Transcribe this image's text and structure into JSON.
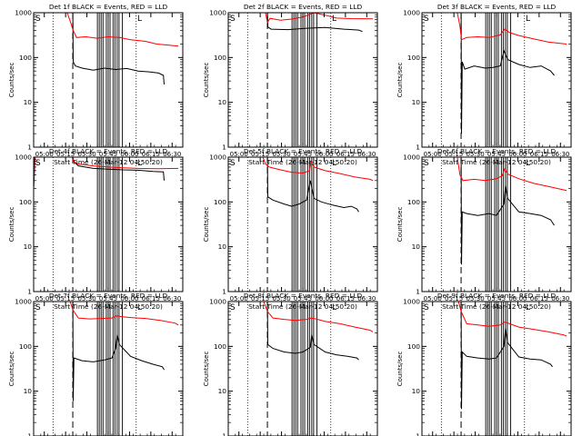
{
  "figure": {
    "type": "line",
    "xlabel_template": "Start Time ({date})",
    "ylabel": "Counts/sec",
    "x_ticks": [
      "05:00",
      "05:15",
      "05:30",
      "05:45",
      "06:00",
      "06:15",
      "06:30"
    ],
    "y_ticks": [
      "1",
      "10",
      "100",
      "1000"
    ],
    "ylim": [
      1,
      1000
    ],
    "x_range_minutes": [
      0,
      40
    ],
    "corner_marks": [
      "S",
      "L"
    ],
    "colors": {
      "events": "#000000",
      "lld": "#ff0000",
      "axes": "#000000"
    }
  },
  "chart_data": [
    {
      "title": "Det 1f BLACK = Events, RED = LLD",
      "xlabel": "Start Time (26-Mar-12 04:50:20)",
      "type": "line",
      "series": [
        {
          "name": "Events",
          "color": "#000000",
          "points": [
            [
              0,
              1000
            ],
            [
              10.5,
              1000
            ],
            [
              10.6,
              80
            ],
            [
              11.2,
              65
            ],
            [
              13,
              58
            ],
            [
              16,
              52
            ],
            [
              19,
              58
            ],
            [
              22,
              54
            ],
            [
              25,
              57
            ],
            [
              28,
              50
            ],
            [
              31,
              48
            ],
            [
              33.5,
              45
            ],
            [
              34.8,
              40
            ],
            [
              35,
              25
            ]
          ]
        },
        {
          "name": "LLD",
          "color": "#ff0000",
          "points": [
            [
              0,
              1000
            ],
            [
              9,
              1000
            ],
            [
              9.8,
              650
            ],
            [
              10.6,
              400
            ],
            [
              11.5,
              280
            ],
            [
              14,
              290
            ],
            [
              17,
              270
            ],
            [
              20,
              290
            ],
            [
              23,
              280
            ],
            [
              26,
              250
            ],
            [
              30,
              230
            ],
            [
              33,
              200
            ],
            [
              36,
              190
            ],
            [
              38.8,
              180
            ]
          ]
        }
      ]
    },
    {
      "title": "Det 2f BLACK = Events, RED = LLD",
      "xlabel": "Start Time (26-Mar-12 04:50:20)",
      "type": "line",
      "series": [
        {
          "name": "Events",
          "color": "#000000",
          "points": [
            [
              0,
              1000
            ],
            [
              10.5,
              1000
            ],
            [
              10.6,
              480
            ],
            [
              11.5,
              430
            ],
            [
              16,
              420
            ],
            [
              21,
              450
            ],
            [
              26,
              470
            ],
            [
              31,
              430
            ],
            [
              35,
              410
            ],
            [
              36,
              380
            ]
          ]
        },
        {
          "name": "LLD",
          "color": "#ff0000",
          "points": [
            [
              0,
              1000
            ],
            [
              10,
              1000
            ],
            [
              10.5,
              600
            ],
            [
              11.2,
              750
            ],
            [
              14,
              680
            ],
            [
              17,
              720
            ],
            [
              20,
              800
            ],
            [
              23,
              1000
            ],
            [
              26,
              880
            ],
            [
              29,
              760
            ],
            [
              33,
              740
            ],
            [
              38.8,
              730
            ]
          ]
        }
      ]
    },
    {
      "title": "Det 3f BLACK = Events, RED = LLD",
      "xlabel": "Start Time (26-Mar-12 04:50:20)",
      "type": "line",
      "series": [
        {
          "name": "Events",
          "color": "#000000",
          "points": [
            [
              0,
              1000
            ],
            [
              10.5,
              1000
            ],
            [
              10.6,
              2
            ],
            [
              10.8,
              80
            ],
            [
              11.5,
              55
            ],
            [
              14,
              65
            ],
            [
              17,
              58
            ],
            [
              19,
              60
            ],
            [
              21,
              65
            ],
            [
              22,
              140
            ],
            [
              23,
              90
            ],
            [
              26,
              70
            ],
            [
              29,
              60
            ],
            [
              32,
              65
            ],
            [
              34.5,
              50
            ],
            [
              35.5,
              40
            ]
          ]
        },
        {
          "name": "LLD",
          "color": "#ff0000",
          "points": [
            [
              0,
              1000
            ],
            [
              9.5,
              1000
            ],
            [
              10.2,
              500
            ],
            [
              10.6,
              250
            ],
            [
              12,
              280
            ],
            [
              15,
              290
            ],
            [
              18,
              280
            ],
            [
              21,
              320
            ],
            [
              22.2,
              430
            ],
            [
              23.5,
              360
            ],
            [
              26,
              310
            ],
            [
              30,
              260
            ],
            [
              34,
              220
            ],
            [
              38.8,
              200
            ]
          ]
        }
      ]
    },
    {
      "title": "Det 4f BLACK = Events, RED = LLD",
      "xlabel": "Start Time (26-Mar-12 04:50:20)",
      "type": "line",
      "series": [
        {
          "name": "Events",
          "color": "#000000",
          "points": [
            [
              0,
              200
            ],
            [
              0.4,
              1000
            ],
            [
              10.5,
              1000
            ],
            [
              10.7,
              800
            ],
            [
              12,
              640
            ],
            [
              16,
              560
            ],
            [
              20,
              540
            ],
            [
              24,
              520
            ],
            [
              28,
              510
            ],
            [
              32,
              480
            ],
            [
              34.8,
              470
            ],
            [
              35,
              300
            ]
          ]
        },
        {
          "name": "LLD",
          "color": "#ff0000",
          "points": [
            [
              0,
              200
            ],
            [
              0.3,
              1000
            ],
            [
              10.3,
              1000
            ],
            [
              10.7,
              800
            ],
            [
              12,
              700
            ],
            [
              16,
              640
            ],
            [
              20,
              600
            ],
            [
              24,
              580
            ],
            [
              28,
              560
            ],
            [
              33,
              550
            ],
            [
              38.8,
              560
            ]
          ]
        }
      ]
    },
    {
      "title": "Det 5f BLACK = Events, RED = LLD",
      "xlabel": "Start Time (26-Mar-12 04:50:20)",
      "type": "line",
      "series": [
        {
          "name": "Events",
          "color": "#000000",
          "points": [
            [
              10.5,
              1000
            ],
            [
              10.6,
              130
            ],
            [
              12,
              110
            ],
            [
              15,
              90
            ],
            [
              17,
              80
            ],
            [
              19,
              90
            ],
            [
              21,
              110
            ],
            [
              22,
              300
            ],
            [
              23,
              120
            ],
            [
              25,
              100
            ],
            [
              28,
              85
            ],
            [
              31,
              75
            ],
            [
              33,
              80
            ],
            [
              34.5,
              70
            ],
            [
              35,
              60
            ]
          ]
        },
        {
          "name": "LLD",
          "color": "#ff0000",
          "points": [
            [
              9.3,
              1000
            ],
            [
              10,
              700
            ],
            [
              11,
              600
            ],
            [
              14,
              520
            ],
            [
              17,
              460
            ],
            [
              20,
              440
            ],
            [
              21.8,
              500
            ],
            [
              22.2,
              800
            ],
            [
              23,
              600
            ],
            [
              26,
              500
            ],
            [
              30,
              430
            ],
            [
              34,
              360
            ],
            [
              38,
              320
            ],
            [
              38.8,
              300
            ]
          ]
        }
      ]
    },
    {
      "title": "Det 6f BLACK = Events, RED = LLD",
      "xlabel": "Start Time (26-Mar-12 04:50:20)",
      "type": "line",
      "series": [
        {
          "name": "Events",
          "color": "#000000",
          "points": [
            [
              10.5,
              1000
            ],
            [
              10.6,
              4
            ],
            [
              10.8,
              60
            ],
            [
              12,
              55
            ],
            [
              15,
              50
            ],
            [
              18,
              55
            ],
            [
              20,
              50
            ],
            [
              22,
              90
            ],
            [
              22.4,
              230
            ],
            [
              23,
              120
            ],
            [
              26,
              60
            ],
            [
              29,
              55
            ],
            [
              32,
              50
            ],
            [
              34.5,
              40
            ],
            [
              35.5,
              30
            ]
          ]
        },
        {
          "name": "LLD",
          "color": "#ff0000",
          "points": [
            [
              9.5,
              1000
            ],
            [
              10.2,
              400
            ],
            [
              11,
              300
            ],
            [
              14,
              320
            ],
            [
              17,
              300
            ],
            [
              20,
              330
            ],
            [
              21.5,
              380
            ],
            [
              22.2,
              550
            ],
            [
              23,
              420
            ],
            [
              26,
              330
            ],
            [
              30,
              260
            ],
            [
              34,
              220
            ],
            [
              38.8,
              180
            ]
          ]
        }
      ]
    },
    {
      "title": "Det 7f BLACK = Events, RED = LLD",
      "xlabel": "Start Time (26-Mar-12 04:50:20)",
      "type": "line",
      "series": [
        {
          "name": "Events",
          "color": "#000000",
          "points": [
            [
              10.5,
              1000
            ],
            [
              10.6,
              6
            ],
            [
              10.8,
              55
            ],
            [
              13,
              48
            ],
            [
              16,
              45
            ],
            [
              19,
              50
            ],
            [
              21,
              55
            ],
            [
              22,
              90
            ],
            [
              22.4,
              180
            ],
            [
              23,
              110
            ],
            [
              26,
              60
            ],
            [
              29,
              48
            ],
            [
              32,
              40
            ],
            [
              34.5,
              35
            ],
            [
              35,
              30
            ]
          ]
        },
        {
          "name": "LLD",
          "color": "#ff0000",
          "points": [
            [
              9.8,
              1000
            ],
            [
              10.5,
              650
            ],
            [
              12,
              430
            ],
            [
              15,
              410
            ],
            [
              18,
              420
            ],
            [
              21,
              430
            ],
            [
              22.2,
              480
            ],
            [
              23.5,
              460
            ],
            [
              26,
              440
            ],
            [
              30,
              420
            ],
            [
              34,
              380
            ],
            [
              38,
              330
            ],
            [
              38.8,
              300
            ]
          ]
        }
      ]
    },
    {
      "title": "Det 8f BLACK = Events, RED = LLD",
      "xlabel": "Start Time (26-Mar-12 04:50:20)",
      "type": "line",
      "series": [
        {
          "name": "Events",
          "color": "#000000",
          "points": [
            [
              10.5,
              1000
            ],
            [
              10.6,
              110
            ],
            [
              12,
              90
            ],
            [
              15,
              75
            ],
            [
              18,
              70
            ],
            [
              20,
              75
            ],
            [
              22,
              95
            ],
            [
              22.4,
              180
            ],
            [
              23,
              110
            ],
            [
              26,
              75
            ],
            [
              29,
              65
            ],
            [
              32,
              60
            ],
            [
              34.5,
              55
            ],
            [
              35,
              50
            ]
          ]
        },
        {
          "name": "LLD",
          "color": "#ff0000",
          "points": [
            [
              9.5,
              1000
            ],
            [
              10.5,
              600
            ],
            [
              12,
              430
            ],
            [
              15,
              400
            ],
            [
              18,
              380
            ],
            [
              21,
              400
            ],
            [
              22.2,
              430
            ],
            [
              23.5,
              410
            ],
            [
              26,
              360
            ],
            [
              30,
              320
            ],
            [
              34,
              270
            ],
            [
              38,
              230
            ],
            [
              38.8,
              210
            ]
          ]
        }
      ]
    },
    {
      "title": "Det 9f BLACK = Events, RED = LLD",
      "xlabel": "Start Time (26-Mar-12 04:50:20)",
      "type": "line",
      "series": [
        {
          "name": "Events",
          "color": "#000000",
          "points": [
            [
              10.5,
              1000
            ],
            [
              10.6,
              4
            ],
            [
              10.8,
              75
            ],
            [
              12,
              60
            ],
            [
              15,
              55
            ],
            [
              18,
              52
            ],
            [
              20,
              55
            ],
            [
              22,
              100
            ],
            [
              22.4,
              250
            ],
            [
              23,
              120
            ],
            [
              26,
              58
            ],
            [
              29,
              52
            ],
            [
              32,
              50
            ],
            [
              34.5,
              40
            ],
            [
              35,
              35
            ]
          ]
        },
        {
          "name": "LLD",
          "color": "#ff0000",
          "points": [
            [
              9.8,
              1000
            ],
            [
              10.5,
              600
            ],
            [
              12,
              320
            ],
            [
              15,
              300
            ],
            [
              18,
              280
            ],
            [
              21,
              300
            ],
            [
              22.2,
              350
            ],
            [
              23.5,
              320
            ],
            [
              26,
              270
            ],
            [
              30,
              240
            ],
            [
              34,
              210
            ],
            [
              38,
              180
            ],
            [
              38.8,
              170
            ]
          ]
        }
      ]
    }
  ]
}
